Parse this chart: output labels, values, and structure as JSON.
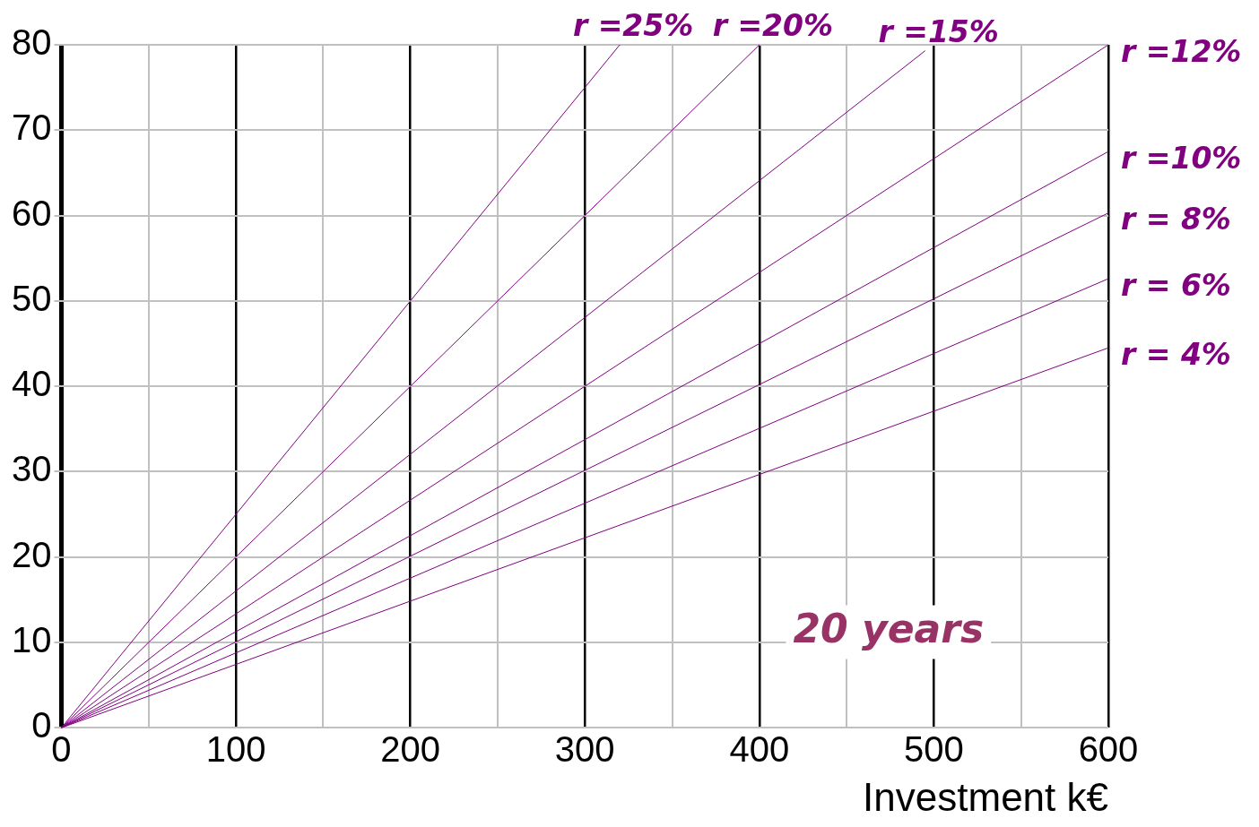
{
  "chart_data": {
    "type": "line",
    "xlabel": "Investment k€",
    "xlim": [
      0,
      600
    ],
    "ylim": [
      0,
      80
    ],
    "xticks": [
      0,
      {
        "value": 50,
        "label": null
      },
      100,
      {
        "value": 150,
        "label": null
      },
      200,
      {
        "value": 250,
        "label": null
      },
      300,
      {
        "value": 350,
        "label": null
      },
      400,
      {
        "value": 450,
        "label": null
      },
      500,
      {
        "value": 550,
        "label": null
      },
      600
    ],
    "yticks": [
      0,
      10,
      20,
      30,
      40,
      50,
      60,
      70,
      80
    ],
    "grid": true,
    "legend": false,
    "marker": "none",
    "line_style": "solid",
    "series": [
      {
        "name": "r =25%",
        "color": "#800080",
        "x": [
          0,
          320
        ],
        "values": [
          0,
          80
        ]
      },
      {
        "name": "r =20%",
        "color": "#800080",
        "x": [
          0,
          400
        ],
        "values": [
          0,
          80
        ]
      },
      {
        "name": "r =15%",
        "color": "#800080",
        "x": [
          0,
          495
        ],
        "values": [
          0,
          79.3
        ]
      },
      {
        "name": "r =12%",
        "color": "#800080",
        "x": [
          0,
          600
        ],
        "values": [
          0,
          80
        ]
      },
      {
        "name": "r =10%",
        "color": "#800080",
        "x": [
          0,
          600
        ],
        "values": [
          0,
          67.5
        ]
      },
      {
        "name": "r = 8%",
        "color": "#800080",
        "x": [
          0,
          600
        ],
        "values": [
          0,
          60.3
        ]
      },
      {
        "name": "r = 6%",
        "color": "#800080",
        "x": [
          0,
          600
        ],
        "values": [
          0,
          52.6
        ]
      },
      {
        "name": "r = 4%",
        "color": "#800080",
        "x": [
          0,
          600
        ],
        "values": [
          0,
          44.5
        ]
      }
    ],
    "annotations": [
      "20 years"
    ]
  }
}
